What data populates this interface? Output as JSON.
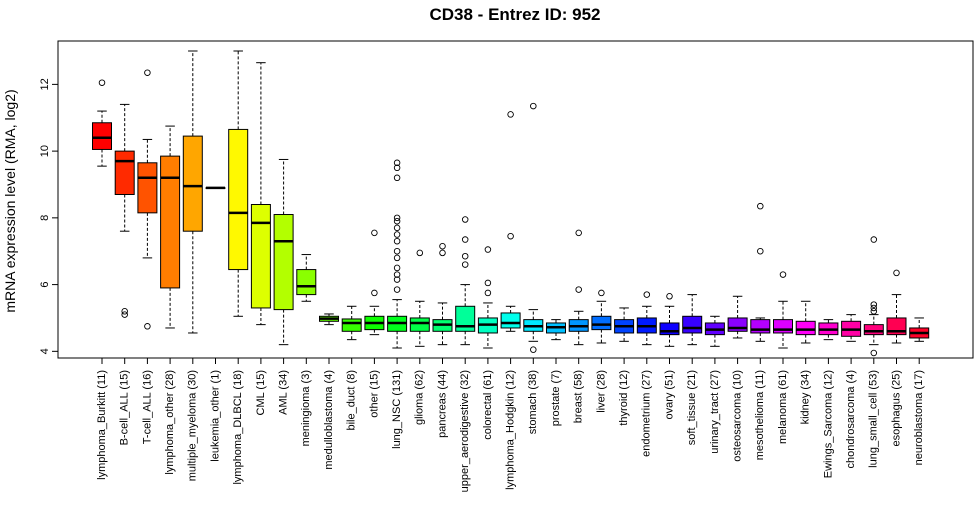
{
  "chart_data": {
    "type": "boxplot",
    "title": "CD38  -  Entrez ID: 952",
    "xlabel": "",
    "ylabel": "mRNA expression level (RMA, log2)",
    "ylim": [
      3.8,
      13.3
    ],
    "yticks": [
      4,
      6,
      8,
      10,
      12
    ],
    "grid": false,
    "legend": "none",
    "categories": [
      "lymphoma_Burkitt (11)",
      "B-cell_ALL (15)",
      "T-cell_ALL (16)",
      "lymphoma_other (28)",
      "multiple_myeloma (30)",
      "leukemia_other (1)",
      "lymphoma_DLBCL (18)",
      "CML (15)",
      "AML (34)",
      "meningioma (3)",
      "medulloblastoma (4)",
      "bile_duct (8)",
      "other (15)",
      "lung_NSC (131)",
      "glioma (62)",
      "pancreas (44)",
      "upper_aerodigestive (32)",
      "colorectal (61)",
      "lymphoma_Hodgkin (12)",
      "stomach (38)",
      "prostate (7)",
      "breast (58)",
      "liver (28)",
      "thyroid (12)",
      "endometrium (27)",
      "ovary (51)",
      "soft_tissue (21)",
      "urinary_tract (27)",
      "osteosarcoma (10)",
      "mesothelioma (11)",
      "melanoma (61)",
      "kidney (34)",
      "Ewings_Sarcoma (12)",
      "chondrosarcoma (4)",
      "lung_small_cell (53)",
      "esophagus (25)",
      "neuroblastoma (17)"
    ],
    "series": [
      {
        "boxes": [
          {
            "min": 9.55,
            "q1": 10.05,
            "median": 10.4,
            "q3": 10.85,
            "max": 11.2,
            "outliers": [
              12.05
            ]
          },
          {
            "min": 7.6,
            "q1": 8.7,
            "median": 9.7,
            "q3": 10.0,
            "max": 11.4,
            "outliers": [
              5.2,
              5.1
            ]
          },
          {
            "min": 6.8,
            "q1": 8.15,
            "median": 9.2,
            "q3": 9.65,
            "max": 10.35,
            "outliers": [
              12.35,
              4.75
            ]
          },
          {
            "min": 4.7,
            "q1": 5.9,
            "median": 9.2,
            "q3": 9.85,
            "max": 10.75,
            "outliers": []
          },
          {
            "min": 4.55,
            "q1": 7.6,
            "median": 8.95,
            "q3": 10.45,
            "max": 13.0,
            "outliers": []
          },
          {
            "min": 8.9,
            "q1": 8.9,
            "median": 8.9,
            "q3": 8.9,
            "max": 8.9,
            "outliers": []
          },
          {
            "min": 5.05,
            "q1": 6.45,
            "median": 8.15,
            "q3": 10.65,
            "max": 13.0,
            "outliers": []
          },
          {
            "min": 4.8,
            "q1": 5.3,
            "median": 7.85,
            "q3": 8.4,
            "max": 12.65,
            "outliers": []
          },
          {
            "min": 4.2,
            "q1": 5.25,
            "median": 7.3,
            "q3": 8.1,
            "max": 9.75,
            "outliers": []
          },
          {
            "min": 5.5,
            "q1": 5.7,
            "median": 5.95,
            "q3": 6.45,
            "max": 6.9,
            "outliers": []
          },
          {
            "min": 4.8,
            "q1": 4.9,
            "median": 4.98,
            "q3": 5.05,
            "max": 5.12,
            "outliers": []
          },
          {
            "min": 4.35,
            "q1": 4.6,
            "median": 4.85,
            "q3": 4.97,
            "max": 5.35,
            "outliers": []
          },
          {
            "min": 4.5,
            "q1": 4.65,
            "median": 4.85,
            "q3": 5.05,
            "max": 5.35,
            "outliers": [
              7.55,
              5.75
            ]
          },
          {
            "min": 4.1,
            "q1": 4.6,
            "median": 4.85,
            "q3": 5.05,
            "max": 5.55,
            "outliers": [
              9.65,
              9.5,
              9.2,
              8.0,
              7.9,
              7.7,
              7.5,
              7.3,
              7.0,
              6.8,
              6.5,
              6.3,
              6.15,
              5.85
            ]
          },
          {
            "min": 4.15,
            "q1": 4.6,
            "median": 4.85,
            "q3": 5.0,
            "max": 5.5,
            "outliers": [
              6.95
            ]
          },
          {
            "min": 4.2,
            "q1": 4.6,
            "median": 4.8,
            "q3": 4.95,
            "max": 5.45,
            "outliers": [
              7.15,
              6.95
            ]
          },
          {
            "min": 4.2,
            "q1": 4.6,
            "median": 4.75,
            "q3": 5.35,
            "max": 6.0,
            "outliers": [
              7.95,
              7.35,
              6.85,
              6.6
            ]
          },
          {
            "min": 4.1,
            "q1": 4.55,
            "median": 4.8,
            "q3": 5.0,
            "max": 5.45,
            "outliers": [
              7.05,
              6.05,
              5.75
            ]
          },
          {
            "min": 4.6,
            "q1": 4.7,
            "median": 4.85,
            "q3": 5.15,
            "max": 5.35,
            "outliers": [
              11.1,
              7.45
            ]
          },
          {
            "min": 4.3,
            "q1": 4.6,
            "median": 4.75,
            "q3": 4.95,
            "max": 5.25,
            "outliers": [
              11.35,
              4.05
            ]
          },
          {
            "min": 4.35,
            "q1": 4.55,
            "median": 4.72,
            "q3": 4.85,
            "max": 4.95,
            "outliers": []
          },
          {
            "min": 4.2,
            "q1": 4.6,
            "median": 4.75,
            "q3": 4.95,
            "max": 5.2,
            "outliers": [
              7.55,
              5.85
            ]
          },
          {
            "min": 4.25,
            "q1": 4.65,
            "median": 4.8,
            "q3": 5.05,
            "max": 5.5,
            "outliers": [
              5.75
            ]
          },
          {
            "min": 4.3,
            "q1": 4.55,
            "median": 4.75,
            "q3": 4.95,
            "max": 5.3,
            "outliers": []
          },
          {
            "min": 4.2,
            "q1": 4.55,
            "median": 4.75,
            "q3": 5.0,
            "max": 5.35,
            "outliers": [
              5.7
            ]
          },
          {
            "min": 4.15,
            "q1": 4.5,
            "median": 4.6,
            "q3": 4.85,
            "max": 5.35,
            "outliers": [
              5.65
            ]
          },
          {
            "min": 4.2,
            "q1": 4.55,
            "median": 4.7,
            "q3": 5.05,
            "max": 5.7,
            "outliers": []
          },
          {
            "min": 4.15,
            "q1": 4.5,
            "median": 4.65,
            "q3": 4.85,
            "max": 5.05,
            "outliers": []
          },
          {
            "min": 4.4,
            "q1": 4.6,
            "median": 4.7,
            "q3": 5.0,
            "max": 5.65,
            "outliers": []
          },
          {
            "min": 4.3,
            "q1": 4.55,
            "median": 4.65,
            "q3": 4.95,
            "max": 5.0,
            "outliers": [
              8.35,
              7.0
            ]
          },
          {
            "min": 4.1,
            "q1": 4.55,
            "median": 4.65,
            "q3": 4.95,
            "max": 5.5,
            "outliers": [
              6.3
            ]
          },
          {
            "min": 4.25,
            "q1": 4.5,
            "median": 4.65,
            "q3": 4.9,
            "max": 5.5,
            "outliers": []
          },
          {
            "min": 4.35,
            "q1": 4.5,
            "median": 4.65,
            "q3": 4.85,
            "max": 4.95,
            "outliers": []
          },
          {
            "min": 4.3,
            "q1": 4.45,
            "median": 4.65,
            "q3": 4.9,
            "max": 5.1,
            "outliers": []
          },
          {
            "min": 4.2,
            "q1": 4.5,
            "median": 4.6,
            "q3": 4.8,
            "max": 5.1,
            "outliers": [
              7.35,
              5.4,
              5.3,
              5.2,
              3.95
            ]
          },
          {
            "min": 4.25,
            "q1": 4.5,
            "median": 4.6,
            "q3": 5.0,
            "max": 5.7,
            "outliers": [
              6.35
            ]
          },
          {
            "min": 4.3,
            "q1": 4.4,
            "median": 4.55,
            "q3": 4.7,
            "max": 5.0,
            "outliers": []
          }
        ]
      }
    ],
    "colors": [
      "#ff0000",
      "#ff2a00",
      "#ff5300",
      "#ff7d00",
      "#ffa600",
      "#ffd000",
      "#fff900",
      "#ddff00",
      "#b3ff00",
      "#8aff00",
      "#60ff00",
      "#37ff00",
      "#0dff00",
      "#00ff1c",
      "#00ff46",
      "#00ff6f",
      "#00ff99",
      "#00ffc2",
      "#00ffec",
      "#00e9ff",
      "#00c0ff",
      "#0096ff",
      "#006dff",
      "#0043ff",
      "#001aff",
      "#0e00ff",
      "#3700ff",
      "#6100ff",
      "#8a00ff",
      "#b400ff",
      "#dd00ff",
      "#ff00f8",
      "#ff00ce",
      "#ff00a5",
      "#ff007b",
      "#ff0052",
      "#ff0028"
    ]
  }
}
